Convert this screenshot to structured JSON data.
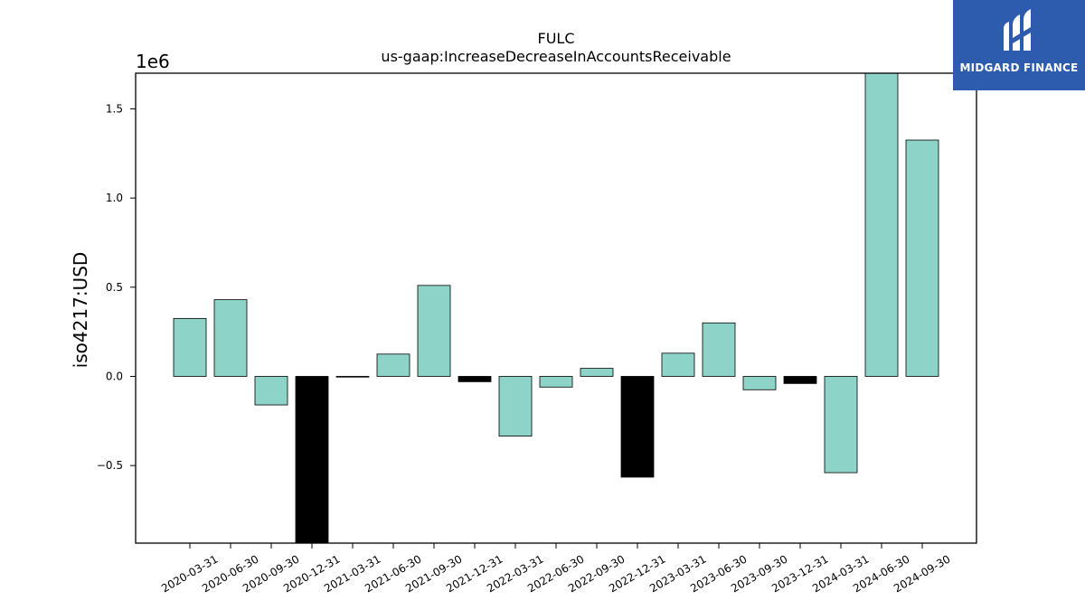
{
  "chart_data": {
    "type": "bar",
    "title": "FULC",
    "subtitle": "us-gaap:IncreaseDecreaseInAccountsReceivable",
    "ylabel": "iso4217:USD",
    "xlabel": "",
    "y_offset_label": "1e6",
    "ylim": [
      -935000,
      1700000
    ],
    "y_ticks": [
      -0.5,
      0.0,
      0.5,
      1.0,
      1.5
    ],
    "y_tick_labels": [
      "−0.5",
      "0.0",
      "0.5",
      "1.0",
      "1.5"
    ],
    "grid": false,
    "categories": [
      "2020-03-31",
      "2020-06-30",
      "2020-09-30",
      "2020-12-31",
      "2021-03-31",
      "2021-06-30",
      "2021-09-30",
      "2021-12-31",
      "2022-03-31",
      "2022-06-30",
      "2022-09-30",
      "2022-12-31",
      "2023-03-31",
      "2023-06-30",
      "2023-09-30",
      "2023-12-31",
      "2024-03-31",
      "2024-06-30",
      "2024-09-30"
    ],
    "values": [
      325000,
      430000,
      -160000,
      -935000,
      -3000,
      125000,
      510000,
      -30000,
      -335000,
      -60000,
      45000,
      -565000,
      130000,
      300000,
      -75000,
      -40000,
      -540000,
      1700000,
      1325000
    ],
    "bar_colors": [
      "#8dd3c7",
      "#8dd3c7",
      "#8dd3c7",
      "#000000",
      "#000000",
      "#8dd3c7",
      "#8dd3c7",
      "#000000",
      "#8dd3c7",
      "#8dd3c7",
      "#8dd3c7",
      "#000000",
      "#8dd3c7",
      "#8dd3c7",
      "#8dd3c7",
      "#000000",
      "#8dd3c7",
      "#8dd3c7",
      "#8dd3c7"
    ]
  },
  "watermark": {
    "text": "MIDGARD FINANCE",
    "icon": "midgard-logo-icon",
    "color": "#2d5caf"
  }
}
